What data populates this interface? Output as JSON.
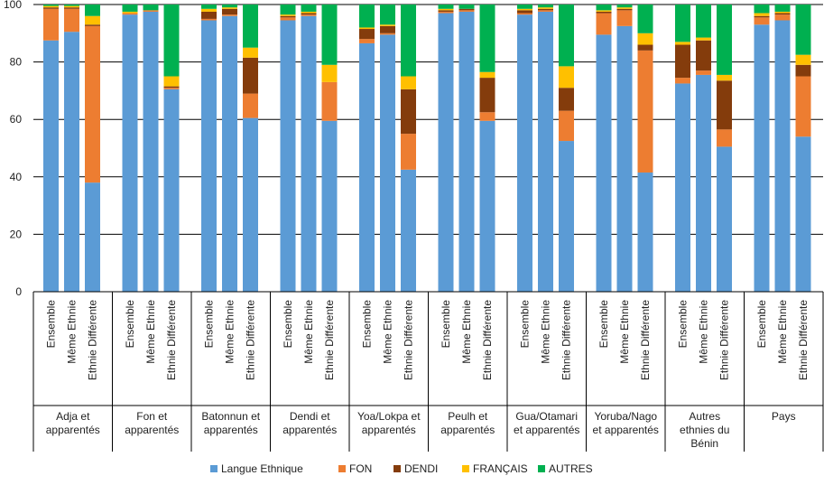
{
  "chart_data": {
    "type": "bar",
    "stacked": true,
    "ylim": [
      0,
      100
    ],
    "yticks": [
      "0",
      "20",
      "40",
      "60",
      "80",
      "100"
    ],
    "grid": "horizontal",
    "legend_position": "bottom",
    "series": [
      {
        "name": "Langue Ethnique",
        "color": "#5b9bd5"
      },
      {
        "name": "FON",
        "color": "#ed7d31"
      },
      {
        "name": "DENDI",
        "color": "#843c0c"
      },
      {
        "name": "FRANÇAIS",
        "color": "#ffc000"
      },
      {
        "name": "AUTRES",
        "color": "#00b050"
      }
    ],
    "groups": [
      {
        "label": [
          "Adja et",
          "apparentés"
        ],
        "bars": [
          {
            "label": "Ensemble",
            "values": [
              87.5,
              11,
              0.5,
              0.5,
              0.5
            ]
          },
          {
            "label": "Même Ethnie",
            "values": [
              90.5,
              8,
              0.5,
              0.5,
              0.5
            ]
          },
          {
            "label": "Ethnie Différente",
            "values": [
              38,
              54.5,
              0.5,
              3,
              4
            ]
          }
        ]
      },
      {
        "label": [
          "Fon et",
          "apparentés"
        ],
        "bars": [
          {
            "label": "Ensemble",
            "values": [
              96.5,
              0.5,
              0,
              0.5,
              2.5
            ]
          },
          {
            "label": "Même Ethnie",
            "values": [
              97.5,
              0.5,
              0,
              0,
              2
            ]
          },
          {
            "label": "Ethnie Différente",
            "values": [
              70.5,
              0.5,
              0.5,
              3.5,
              25
            ]
          }
        ]
      },
      {
        "label": [
          "Batonnun et",
          "apparentés"
        ],
        "bars": [
          {
            "label": "Ensemble",
            "values": [
              94.5,
              0.5,
              2.5,
              1,
              1.5
            ]
          },
          {
            "label": "Même Ethnie",
            "values": [
              96,
              0.5,
              2,
              0.5,
              1
            ]
          },
          {
            "label": "Ethnie Différente",
            "values": [
              60.5,
              8.5,
              12.5,
              3.5,
              15
            ]
          }
        ]
      },
      {
        "label": [
          "Dendi et",
          "apparentés"
        ],
        "bars": [
          {
            "label": "Ensemble",
            "values": [
              94.5,
              1,
              0.5,
              0.5,
              3.5
            ]
          },
          {
            "label": "Même Ethnie",
            "values": [
              96,
              0.5,
              0.5,
              0.5,
              2.5
            ]
          },
          {
            "label": "Ethnie Différente",
            "values": [
              59.5,
              13.5,
              0,
              6,
              21
            ]
          }
        ]
      },
      {
        "label": [
          "Yoa/Lokpa et",
          "apparentés"
        ],
        "bars": [
          {
            "label": "Ensemble",
            "values": [
              86.5,
              1.5,
              3.5,
              0.5,
              8
            ]
          },
          {
            "label": "Même Ethnie",
            "values": [
              89.5,
              0.5,
              2.5,
              0.5,
              7
            ]
          },
          {
            "label": "Ethnie Différente",
            "values": [
              42.5,
              12.5,
              15.5,
              4.5,
              25
            ]
          }
        ]
      },
      {
        "label": [
          "Peulh et",
          "apparentés"
        ],
        "bars": [
          {
            "label": "Ensemble",
            "values": [
              97,
              0.5,
              0.5,
              0.5,
              1.5
            ]
          },
          {
            "label": "Même Ethnie",
            "values": [
              97.5,
              0.5,
              0.5,
              0,
              1.5
            ]
          },
          {
            "label": "Ethnie Différente",
            "values": [
              59.5,
              3,
              12,
              2,
              23.5
            ]
          }
        ]
      },
      {
        "label": [
          "Gua/Otamari",
          "et apparentés"
        ],
        "bars": [
          {
            "label": "Ensemble",
            "values": [
              96.5,
              0.5,
              1,
              0.5,
              1.5
            ]
          },
          {
            "label": "Même Ethnie",
            "values": [
              97.5,
              0.5,
              0.5,
              0.5,
              1
            ]
          },
          {
            "label": "Ethnie Différente",
            "values": [
              52.5,
              10.5,
              8,
              7.5,
              21.5
            ]
          }
        ]
      },
      {
        "label": [
          "Yoruba/Nago",
          "et apparentés"
        ],
        "bars": [
          {
            "label": "Ensemble",
            "values": [
              89.5,
              7.5,
              0.5,
              0.5,
              2
            ]
          },
          {
            "label": "Même Ethnie",
            "values": [
              92.5,
              5.5,
              0.5,
              0.5,
              1
            ]
          },
          {
            "label": "Ethnie Différente",
            "values": [
              41.5,
              42.5,
              2,
              4,
              10
            ]
          }
        ]
      },
      {
        "label": [
          "Autres",
          "ethnies du",
          "Bénin"
        ],
        "bars": [
          {
            "label": "Ensemble",
            "values": [
              72.5,
              2,
              11.5,
              1,
              13
            ]
          },
          {
            "label": "Même Ethnie",
            "values": [
              75.5,
              1.5,
              10.5,
              1,
              11.5
            ]
          },
          {
            "label": "Ethnie Différente",
            "values": [
              50.5,
              6,
              17,
              2,
              24.5
            ]
          }
        ]
      },
      {
        "label": [
          "Pays"
        ],
        "bars": [
          {
            "label": "Ensemble",
            "values": [
              93,
              2.5,
              0.5,
              1,
              3
            ]
          },
          {
            "label": "Même Ethnie",
            "values": [
              94.5,
              2,
              0.5,
              0.5,
              2.5
            ]
          },
          {
            "label": "Ethnie Différente",
            "values": [
              54,
              21,
              4,
              3.5,
              17.5
            ]
          }
        ]
      }
    ]
  }
}
